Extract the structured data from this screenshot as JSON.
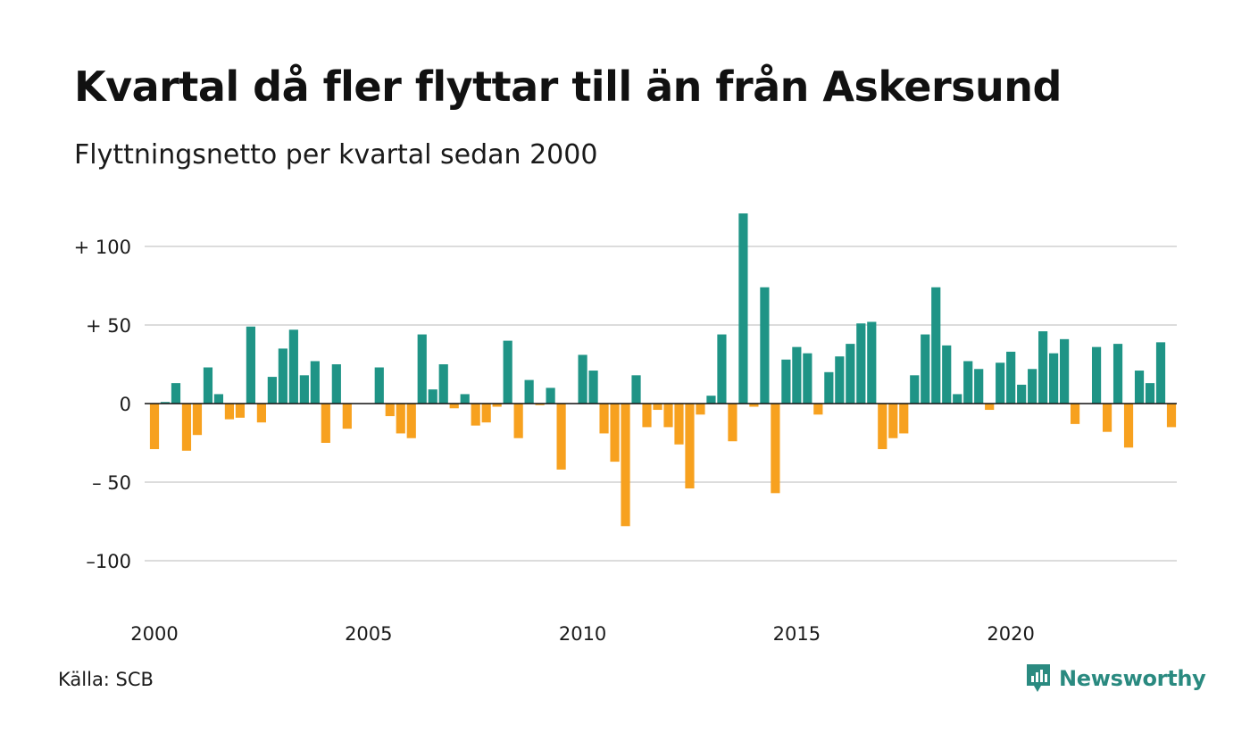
{
  "title": "Kvartal då fler flyttar till än från Askersund",
  "subtitle": "Flyttningsnetto per kvartal sedan 2000",
  "source": "Källa: SCB",
  "brand": {
    "name": "Newsworthy",
    "icon": "newsworthy-logo-icon"
  },
  "colors": {
    "positive": "#1f9486",
    "negative": "#f7a11f",
    "grid": "#dcdcdc",
    "zero": "#111111"
  },
  "chart_data": {
    "type": "bar",
    "x_start": "2000 Q1",
    "frequency": "quarterly",
    "ylim": [
      -130,
      125
    ],
    "yticks": [
      100,
      50,
      0,
      -50,
      -100
    ],
    "ytick_labels": [
      "+ 100",
      "+  50",
      "0",
      "– 50",
      "–100"
    ],
    "xtick_labels": [
      "2000",
      "2005",
      "2010",
      "2015",
      "2020"
    ],
    "grid": true,
    "values": [
      -29,
      1,
      13,
      -30,
      -20,
      23,
      6,
      -10,
      -9,
      49,
      -12,
      17,
      35,
      47,
      18,
      27,
      -25,
      25,
      -16,
      0,
      0,
      23,
      -8,
      -19,
      -22,
      44,
      9,
      25,
      -3,
      6,
      -14,
      -12,
      -2,
      40,
      -22,
      15,
      -1,
      10,
      -42,
      0,
      31,
      21,
      -19,
      -37,
      -78,
      18,
      -15,
      -4,
      -15,
      -26,
      -54,
      -7,
      5,
      44,
      -24,
      121,
      -2,
      74,
      -57,
      28,
      36,
      32,
      -7,
      20,
      30,
      38,
      51,
      52,
      -29,
      -22,
      -19,
      18,
      44,
      74,
      37,
      6,
      27,
      22,
      -4,
      26,
      33,
      12,
      22,
      46,
      32,
      41,
      -13,
      0,
      36,
      -18,
      38,
      -28,
      21,
      13,
      39,
      -15
    ]
  }
}
